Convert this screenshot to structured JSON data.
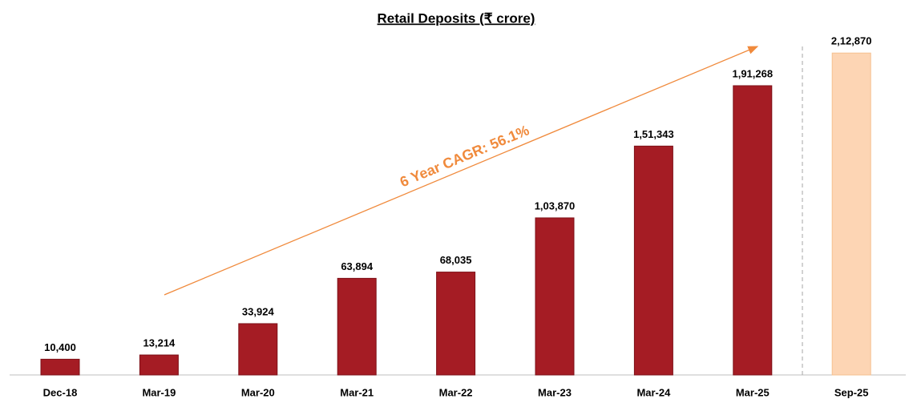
{
  "chart_data": {
    "type": "bar",
    "title": "Retail Deposits (₹ crore)",
    "categories": [
      "Dec-18",
      "Mar-19",
      "Mar-20",
      "Mar-21",
      "Mar-22",
      "Mar-23",
      "Mar-24",
      "Mar-25",
      "Sep-25"
    ],
    "values": [
      10400,
      13214,
      33924,
      63894,
      68035,
      103870,
      151343,
      191268,
      212870
    ],
    "value_labels": [
      "10,400",
      "13,214",
      "33,924",
      "63,894",
      "68,035",
      "1,03,870",
      "1,51,343",
      "1,91,268",
      "2,12,870"
    ],
    "colors": [
      "#a51c24",
      "#a51c24",
      "#a51c24",
      "#a51c24",
      "#a51c24",
      "#a51c24",
      "#a51c24",
      "#a51c24",
      "#fdd5b4"
    ],
    "annotation": "6 Year CAGR: 56.1%",
    "ylim": [
      0,
      240000
    ]
  }
}
